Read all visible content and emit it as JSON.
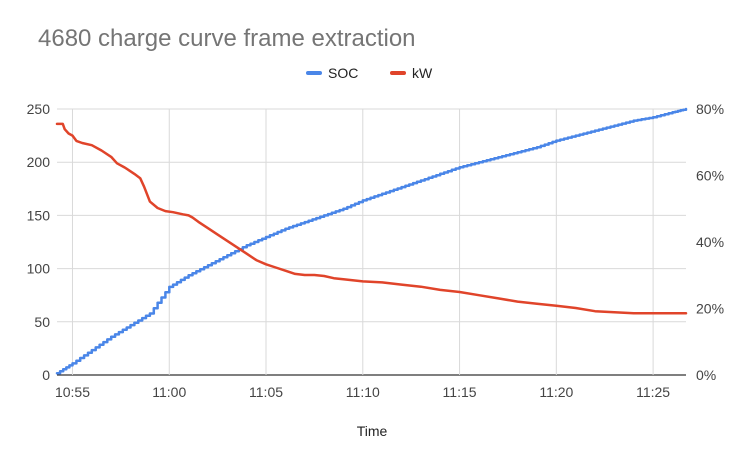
{
  "chart_data": {
    "type": "line",
    "title": "4680 charge curve frame extraction",
    "xlabel": "Time",
    "ylabel_left": "",
    "ylabel_right": "",
    "legend_position": "top-center",
    "grid": true,
    "x_unit": "minutes after 10:00",
    "xlim": [
      54.2,
      86.7
    ],
    "x_ticks": [
      {
        "x": 55,
        "label": "10:55"
      },
      {
        "x": 60,
        "label": "11:00"
      },
      {
        "x": 65,
        "label": "11:05"
      },
      {
        "x": 70,
        "label": "11:10"
      },
      {
        "x": 75,
        "label": "11:15"
      },
      {
        "x": 80,
        "label": "11:20"
      },
      {
        "x": 85,
        "label": "11:25"
      }
    ],
    "y_left": {
      "lim": [
        0,
        250
      ],
      "ticks": [
        {
          "value": 0,
          "label": "0"
        },
        {
          "value": 50,
          "label": "50"
        },
        {
          "value": 100,
          "label": "100"
        },
        {
          "value": 150,
          "label": "150"
        },
        {
          "value": 200,
          "label": "200"
        },
        {
          "value": 250,
          "label": "250"
        }
      ]
    },
    "y_right": {
      "lim": [
        0,
        80
      ],
      "ticks": [
        {
          "value": 0,
          "label": "0%"
        },
        {
          "value": 20,
          "label": "20%"
        },
        {
          "value": 40,
          "label": "40%"
        },
        {
          "value": 60,
          "label": "60%"
        },
        {
          "value": 80,
          "label": "80%"
        }
      ]
    },
    "series": [
      {
        "name": "SOC",
        "axis": "right",
        "unit": "%",
        "color": "#4a86e8",
        "step": true,
        "points": [
          [
            54.2,
            0.5
          ],
          [
            55,
            3.5
          ],
          [
            56,
            7.5
          ],
          [
            57,
            11.5
          ],
          [
            58,
            15
          ],
          [
            59,
            18.5
          ],
          [
            60,
            26.5
          ],
          [
            61,
            30
          ],
          [
            62,
            33
          ],
          [
            63,
            36
          ],
          [
            64,
            39
          ],
          [
            65,
            41.5
          ],
          [
            66,
            44
          ],
          [
            67,
            46
          ],
          [
            68,
            48
          ],
          [
            69,
            50
          ],
          [
            70,
            52.5
          ],
          [
            71,
            54.5
          ],
          [
            72,
            56.5
          ],
          [
            73,
            58.5
          ],
          [
            74,
            60.5
          ],
          [
            75,
            62.5
          ],
          [
            76,
            64
          ],
          [
            77,
            65.5
          ],
          [
            78,
            67
          ],
          [
            79,
            68.5
          ],
          [
            80,
            70.5
          ],
          [
            81,
            72
          ],
          [
            82,
            73.5
          ],
          [
            83,
            75
          ],
          [
            84,
            76.5
          ],
          [
            85,
            77.5
          ],
          [
            86,
            79
          ],
          [
            86.7,
            80
          ]
        ]
      },
      {
        "name": "kW",
        "axis": "left",
        "unit": "kW",
        "color": "#e0442a",
        "step": false,
        "points": [
          [
            54.2,
            236
          ],
          [
            54.5,
            236
          ],
          [
            54.6,
            231
          ],
          [
            54.8,
            227
          ],
          [
            55,
            225
          ],
          [
            55.2,
            220
          ],
          [
            55.5,
            218
          ],
          [
            56,
            216
          ],
          [
            56.5,
            211
          ],
          [
            57,
            205
          ],
          [
            57.3,
            199
          ],
          [
            57.7,
            195
          ],
          [
            58.2,
            189
          ],
          [
            58.5,
            185
          ],
          [
            58.7,
            177
          ],
          [
            59,
            163
          ],
          [
            59.4,
            157
          ],
          [
            59.8,
            154
          ],
          [
            60.2,
            153
          ],
          [
            60.7,
            151
          ],
          [
            61,
            150
          ],
          [
            61.2,
            148
          ],
          [
            61.5,
            144
          ],
          [
            62,
            138
          ],
          [
            62.5,
            132
          ],
          [
            63,
            126
          ],
          [
            63.5,
            120
          ],
          [
            64,
            114
          ],
          [
            64.5,
            108
          ],
          [
            65,
            104
          ],
          [
            65.5,
            101
          ],
          [
            66,
            98
          ],
          [
            66.5,
            95
          ],
          [
            67,
            94
          ],
          [
            67.5,
            94
          ],
          [
            68,
            93
          ],
          [
            68.5,
            91
          ],
          [
            69,
            90
          ],
          [
            70,
            88
          ],
          [
            71,
            87
          ],
          [
            72,
            85
          ],
          [
            73,
            83
          ],
          [
            74,
            80
          ],
          [
            75,
            78
          ],
          [
            76,
            75
          ],
          [
            77,
            72
          ],
          [
            78,
            69
          ],
          [
            79,
            67
          ],
          [
            80,
            65
          ],
          [
            81,
            63
          ],
          [
            82,
            60
          ],
          [
            83,
            59
          ],
          [
            84,
            58
          ],
          [
            85,
            58
          ],
          [
            86,
            58
          ],
          [
            86.7,
            58
          ]
        ]
      }
    ]
  }
}
